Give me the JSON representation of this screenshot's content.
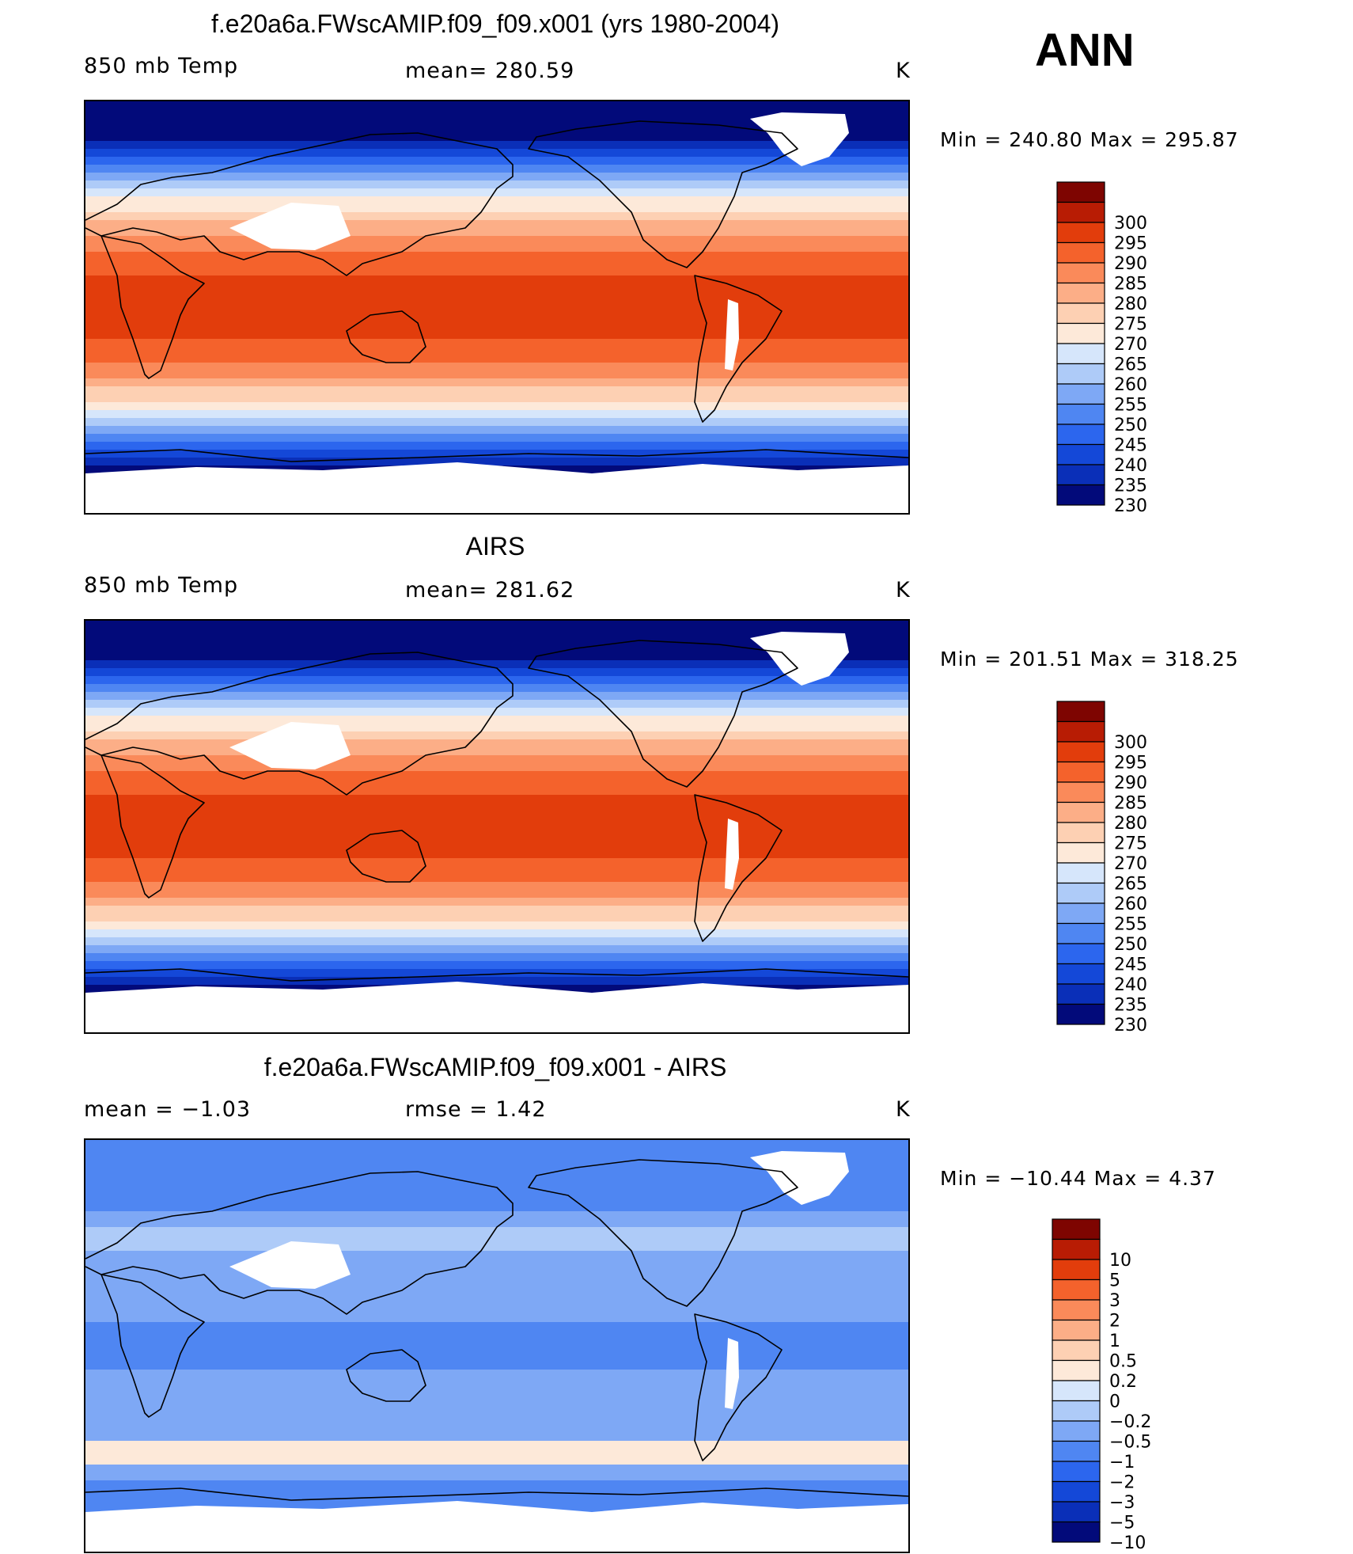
{
  "season": "ANN",
  "panels": [
    {
      "title": "f.e20a6a.FWscAMIP.f09_f09.x001 (yrs 1980-2004)",
      "left_label": "850 mb Temp",
      "center_label": "mean= 280.59",
      "units": "K",
      "minmax": "Min = 240.80 Max = 295.87"
    },
    {
      "title": "AIRS",
      "left_label": "850 mb Temp",
      "center_label": "mean= 281.62",
      "units": "K",
      "minmax": "Min = 201.51 Max = 318.25"
    },
    {
      "title": "f.e20a6a.FWscAMIP.f09_f09.x001 - AIRS",
      "left_label": "mean =   −1.03",
      "center_label": "rmse =     1.42",
      "units": "K",
      "minmax": "Min = −10.44 Max =     4.37"
    }
  ],
  "chart_data": [
    {
      "type": "heatmap",
      "title": "f.e20a6a.FWscAMIP.f09_f09.x001 (yrs 1980-2004)",
      "variable": "850 mb Temp",
      "units": "K",
      "mean": 280.59,
      "min": 240.8,
      "max": 295.87,
      "colorbar_levels": [
        "230",
        "235",
        "240",
        "245",
        "250",
        "255",
        "260",
        "265",
        "270",
        "275",
        "280",
        "285",
        "290",
        "295",
        "300"
      ],
      "colorbar_colors": [
        "#020a7a",
        "#0a2fb8",
        "#1448d8",
        "#2c66ee",
        "#4f86f2",
        "#7ea8f5",
        "#aecbf8",
        "#d6e6fb",
        "#fde9d9",
        "#fdd0b3",
        "#fcae87",
        "#fa8a5a",
        "#f4622c",
        "#e23d0c",
        "#b81c04",
        "#7e0501"
      ]
    },
    {
      "type": "heatmap",
      "title": "AIRS",
      "variable": "850 mb Temp",
      "units": "K",
      "mean": 281.62,
      "min": 201.51,
      "max": 318.25,
      "colorbar_levels": [
        "230",
        "235",
        "240",
        "245",
        "250",
        "255",
        "260",
        "265",
        "270",
        "275",
        "280",
        "285",
        "290",
        "295",
        "300"
      ],
      "colorbar_colors": [
        "#020a7a",
        "#0a2fb8",
        "#1448d8",
        "#2c66ee",
        "#4f86f2",
        "#7ea8f5",
        "#aecbf8",
        "#d6e6fb",
        "#fde9d9",
        "#fdd0b3",
        "#fcae87",
        "#fa8a5a",
        "#f4622c",
        "#e23d0c",
        "#b81c04",
        "#7e0501"
      ]
    },
    {
      "type": "heatmap",
      "title": "f.e20a6a.FWscAMIP.f09_f09.x001 - AIRS",
      "units": "K",
      "mean": -1.03,
      "rmse": 1.42,
      "min": -10.44,
      "max": 4.37,
      "colorbar_levels": [
        "−10",
        "−5",
        "−3",
        "−2",
        "−1",
        "−0.5",
        "−0.2",
        "0",
        "0.2",
        "0.5",
        "1",
        "2",
        "3",
        "5",
        "10"
      ],
      "colorbar_colors": [
        "#020a7a",
        "#0a2fb8",
        "#1448d8",
        "#2c66ee",
        "#4f86f2",
        "#7ea8f5",
        "#aecbf8",
        "#d6e6fb",
        "#fde9d9",
        "#fdd0b3",
        "#fcae87",
        "#fa8a5a",
        "#f4622c",
        "#e23d0c",
        "#b81c04",
        "#7e0501"
      ]
    }
  ]
}
